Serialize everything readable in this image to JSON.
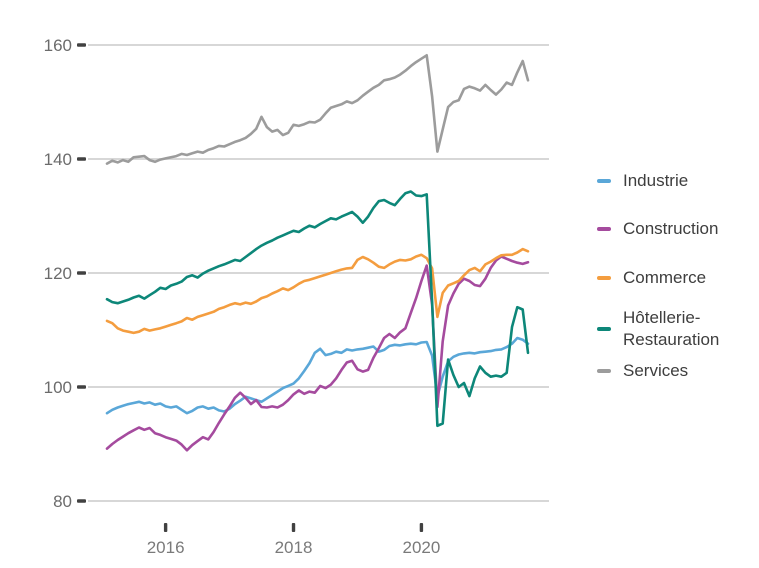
{
  "chart_data": {
    "type": "line",
    "title": "",
    "xlabel": "",
    "ylabel": "",
    "frequency": "monthly",
    "x_start": "2015-02",
    "x_end": "2021-09",
    "grid": true,
    "legend_position": "right",
    "y_ticks": [
      80,
      100,
      120,
      140,
      160
    ],
    "ylim": [
      78,
      162
    ],
    "x_tick_labels": [
      "2016",
      "2018",
      "2020"
    ],
    "x_tick_month_index": [
      11,
      35,
      59
    ],
    "series": [
      {
        "name": "Industrie",
        "color": "#5aa7d8",
        "values": [
          95.4,
          96,
          96.4,
          96.7,
          97,
          97.2,
          97.4,
          97.1,
          97.3,
          96.9,
          97.1,
          96.6,
          96.4,
          96.6,
          96,
          95.4,
          95.8,
          96.4,
          96.6,
          96.2,
          96.4,
          95.9,
          95.7,
          96.2,
          97,
          97.6,
          98.3,
          98,
          97.7,
          97.4,
          98,
          98.6,
          99.2,
          99.8,
          100.2,
          100.6,
          101.5,
          102.8,
          104.2,
          106,
          106.7,
          105.6,
          105.8,
          106.2,
          106,
          106.6,
          106.4,
          106.6,
          106.7,
          106.9,
          107.1,
          106.2,
          106.5,
          107.2,
          107.4,
          107.3,
          107.5,
          107.6,
          107.5,
          107.8,
          107.9,
          105.5,
          98.3,
          101.8,
          104.5,
          105.3,
          105.7,
          105.9,
          106,
          105.9,
          106.1,
          106.2,
          106.3,
          106.5,
          106.6,
          107,
          107.6,
          108.6,
          108.3,
          107.6
        ]
      },
      {
        "name": "Construction",
        "color": "#a54b9e",
        "values": [
          89.2,
          90,
          90.7,
          91.3,
          91.9,
          92.4,
          92.9,
          92.5,
          92.8,
          91.9,
          91.6,
          91.2,
          90.9,
          90.6,
          89.9,
          88.9,
          89.8,
          90.5,
          91.2,
          90.8,
          92.1,
          93.7,
          95.2,
          96.6,
          98.1,
          99,
          98.1,
          97,
          97.7,
          96.5,
          96.4,
          96.6,
          96.4,
          96.9,
          97.7,
          98.7,
          99.4,
          98.8,
          99.2,
          99,
          100.2,
          99.8,
          100.4,
          101.5,
          103,
          104.3,
          104.6,
          103.1,
          102.7,
          103,
          105.1,
          106.8,
          108.6,
          109.3,
          108.6,
          109.6,
          110.3,
          113,
          115.6,
          118.6,
          121.3,
          114.5,
          96.5,
          108,
          114.3,
          116.4,
          118.1,
          119,
          118.6,
          117.9,
          117.7,
          119,
          120.9,
          122.2,
          122.9,
          122.5,
          122.1,
          121.8,
          121.6,
          121.9
        ]
      },
      {
        "name": "Commerce",
        "color": "#f49d3f",
        "values": [
          111.6,
          111.2,
          110.3,
          109.9,
          109.7,
          109.5,
          109.7,
          110.2,
          109.9,
          110.1,
          110.3,
          110.6,
          110.9,
          111.2,
          111.5,
          112.1,
          111.8,
          112.3,
          112.6,
          112.9,
          113.2,
          113.7,
          114,
          114.4,
          114.7,
          114.5,
          114.8,
          114.6,
          115,
          115.6,
          115.9,
          116.4,
          116.8,
          117.3,
          117,
          117.5,
          118.1,
          118.6,
          118.8,
          119.1,
          119.4,
          119.7,
          120,
          120.3,
          120.6,
          120.8,
          120.9,
          122.3,
          122.8,
          122.4,
          121.8,
          121.1,
          120.9,
          121.5,
          122,
          122.3,
          122.2,
          122.4,
          122.9,
          123.2,
          122.6,
          120.8,
          112.3,
          116.5,
          117.8,
          118.2,
          118.6,
          119.6,
          120.5,
          120.9,
          120.3,
          121.5,
          122,
          122.6,
          123.1,
          123.2,
          123.2,
          123.6,
          124.2,
          123.8
        ]
      },
      {
        "name": "Hôtellerie-Restauration",
        "color": "#0d8779",
        "values": [
          115.4,
          114.9,
          114.7,
          115,
          115.3,
          115.7,
          116,
          115.5,
          116.1,
          116.7,
          117.4,
          117.2,
          117.8,
          118.1,
          118.5,
          119.3,
          119.6,
          119.2,
          119.9,
          120.4,
          120.8,
          121.2,
          121.5,
          121.9,
          122.3,
          122.1,
          122.8,
          123.5,
          124.2,
          124.8,
          125.3,
          125.7,
          126.2,
          126.6,
          127,
          127.4,
          127.2,
          127.8,
          128.3,
          128,
          128.6,
          129.1,
          129.6,
          129.4,
          129.9,
          130.3,
          130.7,
          129.9,
          128.8,
          129.9,
          131.4,
          132.6,
          132.8,
          132.3,
          131.9,
          133,
          134,
          134.3,
          133.6,
          133.5,
          133.8,
          115,
          93.2,
          93.6,
          104.8,
          102.1,
          100,
          100.7,
          98.4,
          101.5,
          103.6,
          102.5,
          101.8,
          102,
          101.8,
          102.5,
          110.5,
          114,
          113.6,
          106
        ]
      },
      {
        "name": "Services",
        "color": "#9c9c9c",
        "values": [
          139.2,
          139.7,
          139.4,
          139.8,
          139.5,
          140.3,
          140.4,
          140.5,
          139.8,
          139.5,
          139.9,
          140.1,
          140.3,
          140.5,
          140.9,
          140.7,
          141,
          141.3,
          141.1,
          141.6,
          141.9,
          142.3,
          142.2,
          142.6,
          143,
          143.3,
          143.7,
          144.4,
          145.3,
          147.4,
          145.6,
          144.8,
          145.1,
          144.2,
          144.6,
          146,
          145.8,
          146.1,
          146.5,
          146.4,
          146.9,
          148,
          149,
          149.3,
          149.6,
          150.1,
          149.8,
          150.3,
          151.1,
          151.8,
          152.5,
          153,
          153.8,
          154,
          154.3,
          154.8,
          155.5,
          156.3,
          157,
          157.6,
          158.2,
          151,
          141.3,
          145.2,
          149.1,
          150,
          150.3,
          152.3,
          152.7,
          152.4,
          152,
          153,
          152.1,
          151.3,
          152.2,
          153.4,
          153,
          155.2,
          157.2,
          153.8
        ]
      }
    ]
  },
  "legend": {
    "items": [
      {
        "label": "Industrie",
        "color": "#5aa7d8"
      },
      {
        "label": "Construction",
        "color": "#a54b9e"
      },
      {
        "label": "Commerce",
        "color": "#f49d3f"
      },
      {
        "label": "Hôtellerie-\nRestauration",
        "color": "#0d8779"
      },
      {
        "label": "Services",
        "color": "#9c9c9c"
      }
    ]
  }
}
